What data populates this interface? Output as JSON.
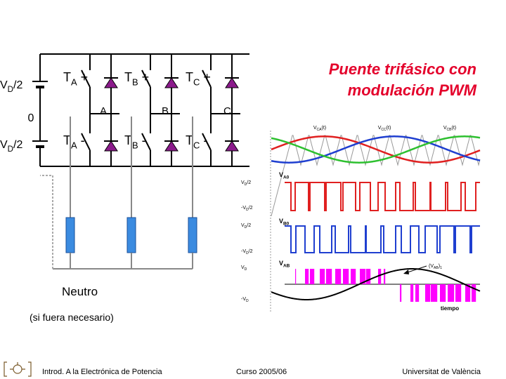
{
  "title": [
    "Puente trifásico con",
    "modulación PWM"
  ],
  "circuit": {
    "source_top": [
      "V",
      "D",
      "/2"
    ],
    "source_bottom": [
      "V",
      "D",
      "/2"
    ],
    "neutral_point": "0",
    "switches_top": [
      [
        "T",
        "A",
        " +"
      ],
      [
        "T",
        "B",
        " +"
      ],
      [
        "T",
        "C",
        " +"
      ]
    ],
    "switches_bottom": [
      [
        "T",
        "A",
        " -"
      ],
      [
        "T",
        "B",
        " -"
      ],
      [
        "T",
        "C",
        " -"
      ]
    ],
    "nodes": [
      "A",
      "B",
      "C"
    ],
    "neutral_label": "Neutro",
    "neutral_note": "(si fuera necesario)"
  },
  "waveforms": {
    "carrier_labels": [
      [
        "V",
        "CA",
        "(t)"
      ],
      [
        "V",
        "CC",
        "(t)"
      ],
      [
        "V",
        "CB",
        "(t)"
      ]
    ],
    "panels": [
      {
        "name": [
          "V",
          "A0"
        ],
        "levels": [
          [
            "V",
            "D",
            "/2"
          ],
          [
            "-V",
            "D",
            "/2"
          ]
        ]
      },
      {
        "name": [
          "V",
          "B0"
        ],
        "levels": [
          [
            "V",
            "D",
            "/2"
          ],
          [
            "-V",
            "D",
            "/2"
          ]
        ]
      },
      {
        "name": [
          "V",
          "AB"
        ],
        "levels": [
          [
            "V",
            "D"
          ],
          [
            "-V",
            "D"
          ]
        ]
      }
    ],
    "fundamental_label": [
      "(V",
      "AB",
      ")",
      "1"
    ],
    "time_label": "tiempo"
  },
  "footer": {
    "course_title": "Introd. A la Electrónica de Potencia",
    "year": "Curso 2005/06",
    "university": "Universitat de València"
  }
}
